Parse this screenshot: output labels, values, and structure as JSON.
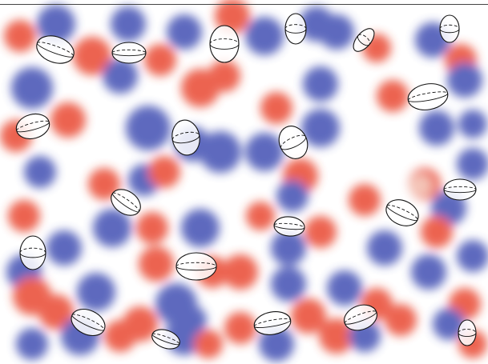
{
  "colors": {
    "positive": "#e8432a",
    "negative": "#3b48b0",
    "background": "#ffffff",
    "outline": "#111111"
  },
  "legend": {
    "glyph_top_right": ""
  }
}
